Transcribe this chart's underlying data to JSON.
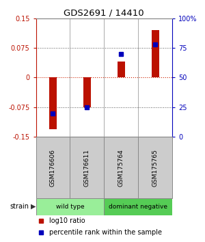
{
  "title": "GDS2691 / 14410",
  "samples": [
    "GSM176606",
    "GSM176611",
    "GSM175764",
    "GSM175765"
  ],
  "log10_ratio": [
    -0.13,
    -0.075,
    0.04,
    0.12
  ],
  "percentile_rank": [
    20,
    25,
    70,
    78
  ],
  "ylim": [
    -0.15,
    0.15
  ],
  "yticks_left": [
    -0.15,
    -0.075,
    0,
    0.075,
    0.15
  ],
  "yticks_right": [
    0,
    25,
    50,
    75,
    100
  ],
  "bar_color": "#bb1100",
  "dot_color": "#0000bb",
  "dotted_line_color": "#555555",
  "zero_line_color": "#cc2200",
  "groups": [
    {
      "label": "wild type",
      "samples": [
        0,
        1
      ],
      "color": "#99ee99"
    },
    {
      "label": "dominant negative",
      "samples": [
        2,
        3
      ],
      "color": "#55cc55"
    }
  ],
  "strain_label": "strain",
  "legend_bar_label": "log10 ratio",
  "legend_dot_label": "percentile rank within the sample",
  "background_color": "#ffffff",
  "plot_bg_color": "#ffffff",
  "sample_box_color": "#cccccc"
}
